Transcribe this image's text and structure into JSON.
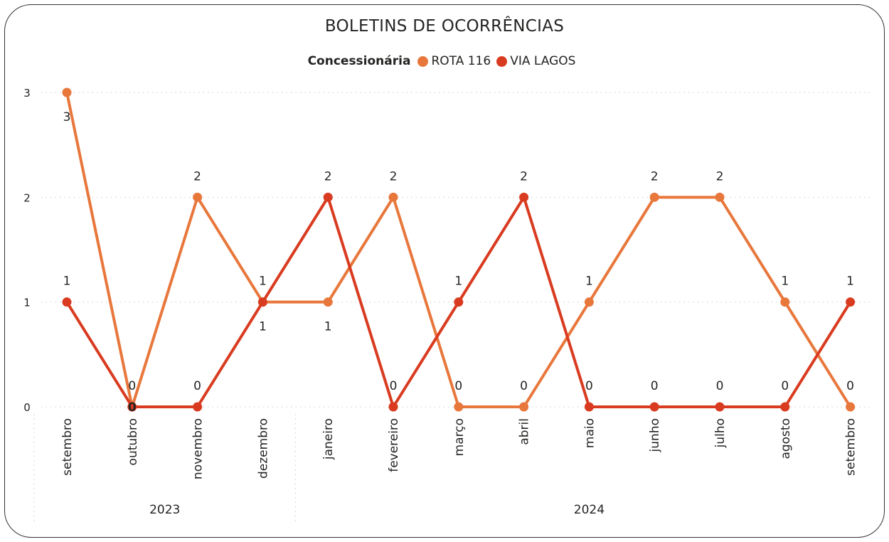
{
  "chart_data": {
    "type": "line",
    "title": "BOLETINS DE OCORRÊNCIAS",
    "legend_title": "Concessionária",
    "legend_position": "top-center",
    "grid": true,
    "ylim": [
      0,
      3
    ],
    "y_ticks": [
      "0",
      "1",
      "2",
      "3"
    ],
    "categories": [
      "setembro",
      "outubro",
      "novembro",
      "dezembro",
      "janeiro",
      "fevereiro",
      "março",
      "abril",
      "maio",
      "junho",
      "julho",
      "agosto",
      "setembro"
    ],
    "years": [
      {
        "label": "2023",
        "span": 4
      },
      {
        "label": "2024",
        "span": 9
      }
    ],
    "series": [
      {
        "name": "ROTA 116",
        "color": "#E8773C",
        "values": [
          3,
          0,
          2,
          1,
          1,
          2,
          0,
          0,
          1,
          2,
          2,
          1,
          0
        ],
        "label_positions": [
          "below",
          "above",
          "above",
          "below",
          "below",
          "above",
          "above",
          "above",
          "above",
          "above",
          "above",
          "above",
          "above"
        ]
      },
      {
        "name": "VIA LAGOS",
        "color": "#D93B20",
        "values": [
          1,
          0,
          0,
          1,
          2,
          0,
          1,
          2,
          0,
          0,
          0,
          0,
          1
        ],
        "label_positions": [
          "above",
          "on",
          "above",
          "above",
          "above",
          "above",
          "above",
          "above",
          "above",
          "above",
          "above",
          "above",
          "above"
        ]
      }
    ]
  }
}
